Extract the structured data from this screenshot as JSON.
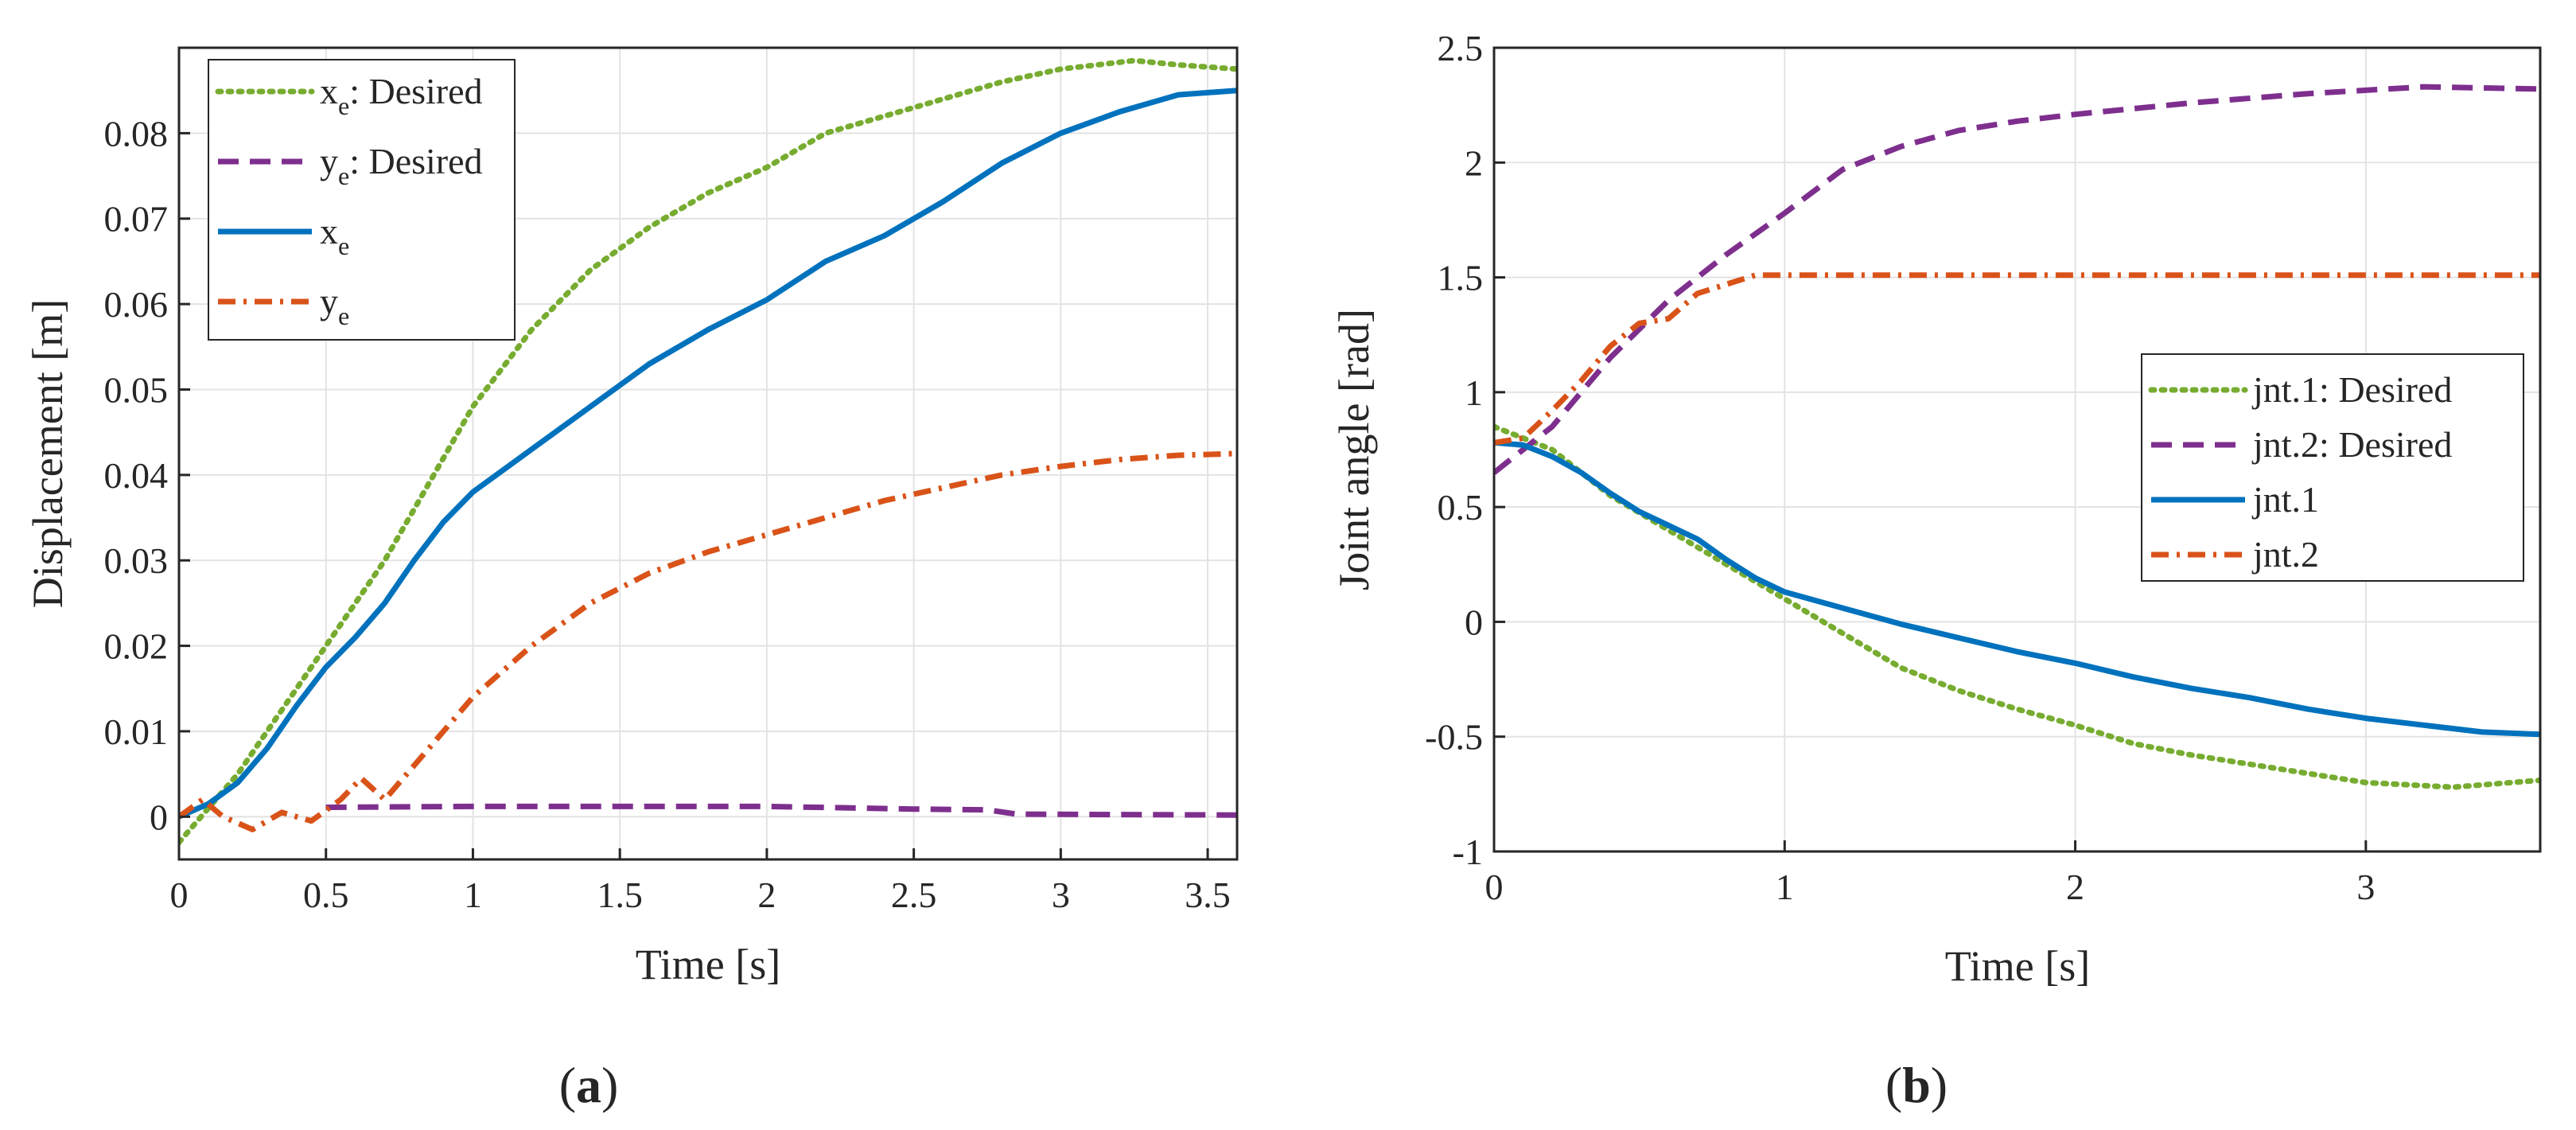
{
  "figure": {
    "panels": [
      {
        "caption_letter": "a"
      },
      {
        "caption_letter": "b"
      }
    ]
  },
  "chart_data": [
    {
      "type": "line",
      "panel": "a",
      "xlabel": "Time [s]",
      "ylabel": "Displacement [m]",
      "xlim": [
        0,
        3.6
      ],
      "ylim": [
        -0.005,
        0.09
      ],
      "xticks": [
        0,
        0.5,
        1,
        1.5,
        2,
        2.5,
        3,
        3.5
      ],
      "xtick_labels": [
        "0",
        "0.5",
        "1",
        "1.5",
        "2",
        "2.5",
        "3",
        "3.5"
      ],
      "yticks": [
        0,
        0.01,
        0.02,
        0.03,
        0.04,
        0.05,
        0.06,
        0.07,
        0.08
      ],
      "ytick_labels": [
        "0",
        "0.01",
        "0.02",
        "0.03",
        "0.04",
        "0.05",
        "0.06",
        "0.07",
        "0.08"
      ],
      "grid": true,
      "legend_position": "top-left",
      "series": [
        {
          "name": "x_e: Desired",
          "label_main": "x",
          "label_sub": "e",
          "label_suffix": ": Desired",
          "color": "#77AC30",
          "style": "dotted",
          "points": [
            [
              0,
              -0.003
            ],
            [
              0.1,
              0.001
            ],
            [
              0.2,
              0.005
            ],
            [
              0.3,
              0.01
            ],
            [
              0.4,
              0.015
            ],
            [
              0.5,
              0.02
            ],
            [
              0.6,
              0.025
            ],
            [
              0.7,
              0.03
            ],
            [
              0.8,
              0.036
            ],
            [
              0.9,
              0.042
            ],
            [
              1.0,
              0.048
            ],
            [
              1.2,
              0.057
            ],
            [
              1.4,
              0.064
            ],
            [
              1.6,
              0.069
            ],
            [
              1.8,
              0.073
            ],
            [
              2.0,
              0.076
            ],
            [
              2.2,
              0.08
            ],
            [
              2.4,
              0.082
            ],
            [
              2.6,
              0.084
            ],
            [
              2.8,
              0.086
            ],
            [
              3.0,
              0.0875
            ],
            [
              3.25,
              0.0885
            ],
            [
              3.4,
              0.088
            ],
            [
              3.6,
              0.0875
            ]
          ]
        },
        {
          "name": "y_e: Desired",
          "label_main": "y",
          "label_sub": "e",
          "label_suffix": ": Desired",
          "color": "#7E2F8E",
          "style": "dashed",
          "points": [
            [
              0.5,
              0.0011
            ],
            [
              1.0,
              0.0012
            ],
            [
              1.5,
              0.0012
            ],
            [
              2.0,
              0.0012
            ],
            [
              2.5,
              0.0009
            ],
            [
              2.75,
              0.0008
            ],
            [
              2.85,
              0.0003
            ],
            [
              3.6,
              0.0002
            ]
          ]
        },
        {
          "name": "x_e",
          "label_main": "x",
          "label_sub": "e",
          "label_suffix": "",
          "color": "#0072BD",
          "style": "solid",
          "points": [
            [
              0,
              0
            ],
            [
              0.1,
              0.0015
            ],
            [
              0.2,
              0.004
            ],
            [
              0.3,
              0.008
            ],
            [
              0.4,
              0.013
            ],
            [
              0.5,
              0.0175
            ],
            [
              0.6,
              0.021
            ],
            [
              0.7,
              0.025
            ],
            [
              0.8,
              0.03
            ],
            [
              0.9,
              0.0345
            ],
            [
              1.0,
              0.038
            ],
            [
              1.2,
              0.043
            ],
            [
              1.4,
              0.048
            ],
            [
              1.6,
              0.053
            ],
            [
              1.8,
              0.057
            ],
            [
              2.0,
              0.0605
            ],
            [
              2.2,
              0.065
            ],
            [
              2.4,
              0.068
            ],
            [
              2.6,
              0.072
            ],
            [
              2.8,
              0.0765
            ],
            [
              3.0,
              0.08
            ],
            [
              3.2,
              0.0825
            ],
            [
              3.4,
              0.0845
            ],
            [
              3.6,
              0.085
            ]
          ]
        },
        {
          "name": "y_e",
          "label_main": "y",
          "label_sub": "e",
          "label_suffix": "",
          "color": "#D95319",
          "style": "dashdot",
          "points": [
            [
              0,
              0
            ],
            [
              0.08,
              0.002
            ],
            [
              0.15,
              0
            ],
            [
              0.25,
              -0.0015
            ],
            [
              0.35,
              0.0005
            ],
            [
              0.45,
              -0.0005
            ],
            [
              0.55,
              0.002
            ],
            [
              0.62,
              0.0045
            ],
            [
              0.7,
              0.002
            ],
            [
              0.8,
              0.006
            ],
            [
              0.9,
              0.01
            ],
            [
              1.0,
              0.014
            ],
            [
              1.2,
              0.02
            ],
            [
              1.4,
              0.025
            ],
            [
              1.6,
              0.0285
            ],
            [
              1.8,
              0.031
            ],
            [
              2.0,
              0.033
            ],
            [
              2.2,
              0.035
            ],
            [
              2.4,
              0.037
            ],
            [
              2.6,
              0.0385
            ],
            [
              2.8,
              0.04
            ],
            [
              3.0,
              0.041
            ],
            [
              3.2,
              0.0418
            ],
            [
              3.4,
              0.0423
            ],
            [
              3.6,
              0.0425
            ]
          ]
        }
      ]
    },
    {
      "type": "line",
      "panel": "b",
      "xlabel": "Time [s]",
      "ylabel": "Joint angle [rad]",
      "xlim": [
        0,
        3.6
      ],
      "ylim": [
        -1,
        2.5
      ],
      "xticks": [
        0,
        1,
        2,
        3
      ],
      "xtick_labels": [
        "0",
        "1",
        "2",
        "3"
      ],
      "yticks": [
        -1,
        -0.5,
        0,
        0.5,
        1,
        1.5,
        2,
        2.5
      ],
      "ytick_labels": [
        "-1",
        "-0.5",
        "0",
        "0.5",
        "1",
        "1.5",
        "2",
        "2.5"
      ],
      "grid": true,
      "legend_position": "center-right",
      "series": [
        {
          "name": "jnt.1: Desired",
          "label_main": "jnt.1: Desired",
          "label_sub": "",
          "label_suffix": "",
          "color": "#77AC30",
          "style": "dotted",
          "points": [
            [
              0,
              0.85
            ],
            [
              0.2,
              0.75
            ],
            [
              0.4,
              0.55
            ],
            [
              0.6,
              0.4
            ],
            [
              0.8,
              0.25
            ],
            [
              1.0,
              0.1
            ],
            [
              1.2,
              -0.05
            ],
            [
              1.4,
              -0.2
            ],
            [
              1.6,
              -0.3
            ],
            [
              1.8,
              -0.38
            ],
            [
              2.0,
              -0.45
            ],
            [
              2.2,
              -0.53
            ],
            [
              2.4,
              -0.58
            ],
            [
              2.6,
              -0.62
            ],
            [
              2.8,
              -0.66
            ],
            [
              3.0,
              -0.7
            ],
            [
              3.3,
              -0.72
            ],
            [
              3.6,
              -0.69
            ]
          ]
        },
        {
          "name": "jnt.2: Desired",
          "label_main": "jnt.2: Desired",
          "label_sub": "",
          "label_suffix": "",
          "color": "#7E2F8E",
          "style": "dashed",
          "points": [
            [
              0,
              0.65
            ],
            [
              0.2,
              0.85
            ],
            [
              0.4,
              1.15
            ],
            [
              0.6,
              1.4
            ],
            [
              0.8,
              1.6
            ],
            [
              1.0,
              1.78
            ],
            [
              1.2,
              1.97
            ],
            [
              1.4,
              2.07
            ],
            [
              1.6,
              2.14
            ],
            [
              1.8,
              2.18
            ],
            [
              2.0,
              2.21
            ],
            [
              2.4,
              2.26
            ],
            [
              2.8,
              2.3
            ],
            [
              3.2,
              2.33
            ],
            [
              3.6,
              2.32
            ]
          ]
        },
        {
          "name": "jnt.1",
          "label_main": "jnt.1",
          "label_sub": "",
          "label_suffix": "",
          "color": "#0072BD",
          "style": "solid",
          "points": [
            [
              0,
              0.78
            ],
            [
              0.1,
              0.77
            ],
            [
              0.2,
              0.72
            ],
            [
              0.3,
              0.65
            ],
            [
              0.4,
              0.56
            ],
            [
              0.5,
              0.48
            ],
            [
              0.6,
              0.42
            ],
            [
              0.7,
              0.36
            ],
            [
              0.8,
              0.27
            ],
            [
              0.9,
              0.19
            ],
            [
              1.0,
              0.13
            ],
            [
              1.2,
              0.06
            ],
            [
              1.4,
              -0.01
            ],
            [
              1.6,
              -0.07
            ],
            [
              1.8,
              -0.13
            ],
            [
              2.0,
              -0.18
            ],
            [
              2.2,
              -0.24
            ],
            [
              2.4,
              -0.29
            ],
            [
              2.6,
              -0.33
            ],
            [
              2.8,
              -0.38
            ],
            [
              3.0,
              -0.42
            ],
            [
              3.2,
              -0.45
            ],
            [
              3.4,
              -0.48
            ],
            [
              3.6,
              -0.49
            ]
          ]
        },
        {
          "name": "jnt.2",
          "label_main": "jnt.2",
          "label_sub": "",
          "label_suffix": "",
          "color": "#D95319",
          "style": "dashdot",
          "points": [
            [
              0,
              0.78
            ],
            [
              0.1,
              0.8
            ],
            [
              0.2,
              0.92
            ],
            [
              0.3,
              1.05
            ],
            [
              0.4,
              1.2
            ],
            [
              0.5,
              1.3
            ],
            [
              0.55,
              1.31
            ],
            [
              0.6,
              1.32
            ],
            [
              0.7,
              1.43
            ],
            [
              0.8,
              1.47
            ],
            [
              0.9,
              1.51
            ],
            [
              1.0,
              1.51
            ],
            [
              2.0,
              1.51
            ],
            [
              3.0,
              1.51
            ],
            [
              3.6,
              1.51
            ]
          ]
        }
      ]
    }
  ]
}
